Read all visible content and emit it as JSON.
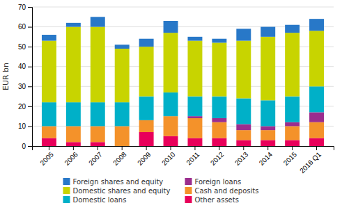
{
  "chart_data": {
    "type": "bar",
    "stacked": true,
    "ylabel": "EUR bn",
    "categories": [
      "2005",
      "2006",
      "2007",
      "2008",
      "2009",
      "2010",
      "2011",
      "2012",
      "2013",
      "2014",
      "2015",
      "2016 Q1"
    ],
    "series": [
      {
        "name": "Other assets",
        "color": "#e8005a",
        "values": [
          4,
          2,
          2,
          0,
          7,
          5,
          4,
          4,
          3,
          3,
          3,
          4
        ]
      },
      {
        "name": "Cash and deposits",
        "color": "#f4922a",
        "values": [
          6,
          8,
          8,
          10,
          6,
          10,
          10,
          8,
          5,
          5,
          7,
          8
        ]
      },
      {
        "name": "Foreign loans",
        "color": "#9b2d8e",
        "values": [
          0,
          0,
          0,
          0,
          0,
          0,
          1,
          2,
          3,
          2,
          2,
          5
        ]
      },
      {
        "name": "Domestic loans",
        "color": "#00b0c8",
        "values": [
          12,
          12,
          12,
          12,
          12,
          12,
          10,
          11,
          13,
          13,
          13,
          13
        ]
      },
      {
        "name": "Domestic shares and equity",
        "color": "#c8d400",
        "values": [
          31,
          38,
          38,
          27,
          25,
          30,
          28,
          27,
          29,
          32,
          32,
          28
        ]
      },
      {
        "name": "Foreign shares and equity",
        "color": "#2878c8",
        "values": [
          3,
          2,
          5,
          2,
          4,
          6,
          2,
          2,
          6,
          5,
          4,
          6
        ]
      }
    ],
    "ylim": [
      0,
      70
    ],
    "yticks": [
      0,
      10,
      20,
      30,
      40,
      50,
      60,
      70
    ],
    "grid": true,
    "legend": "bottom"
  }
}
